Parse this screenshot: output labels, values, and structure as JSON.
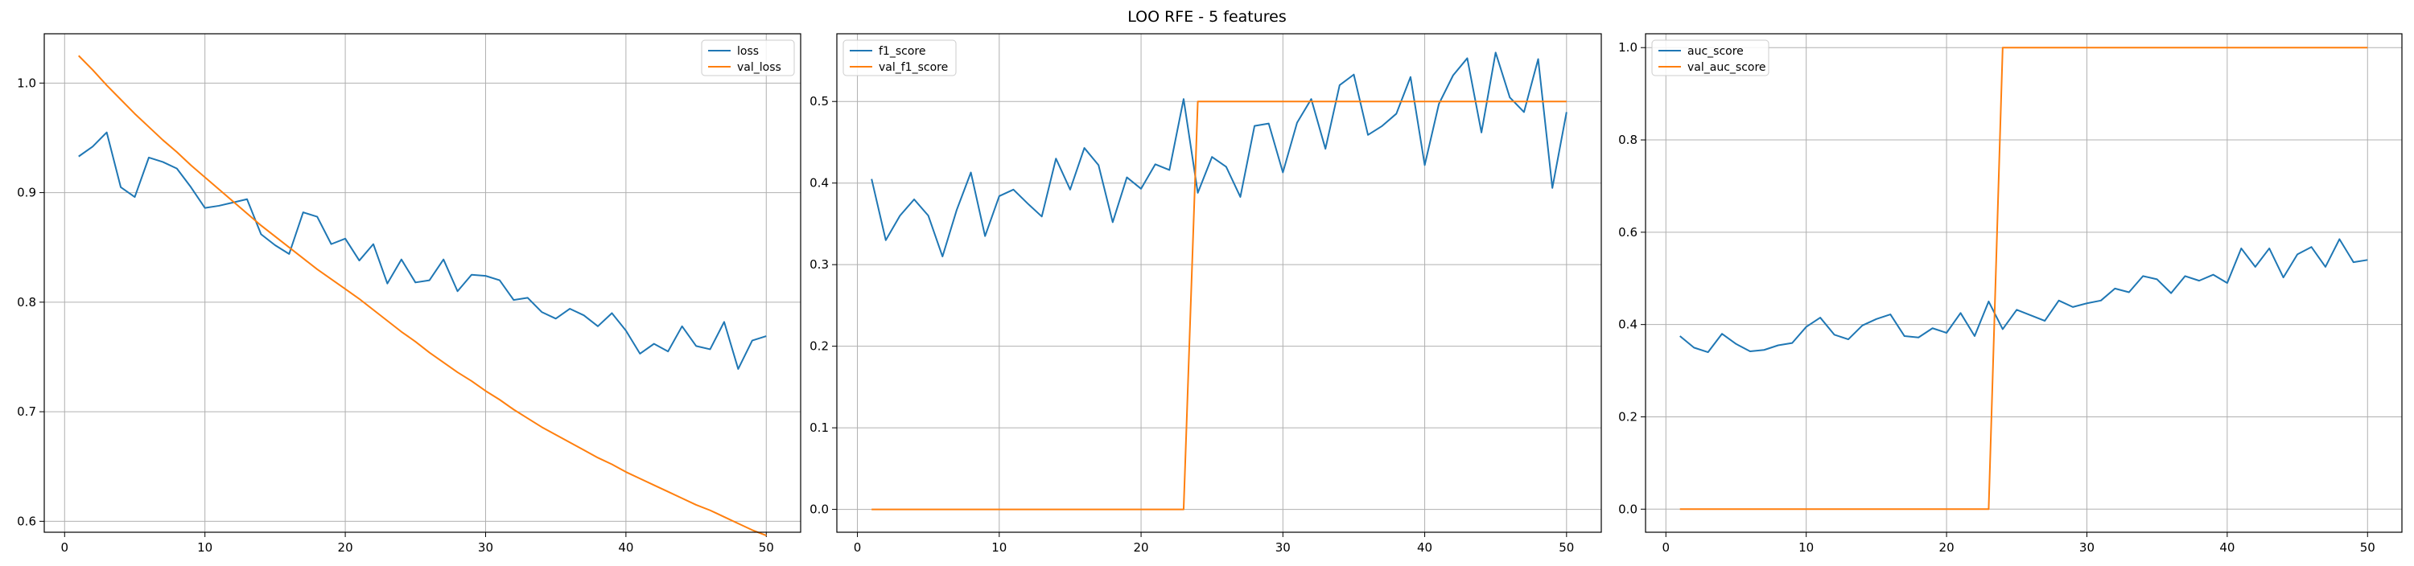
{
  "figure": {
    "suptitle": "LOO RFE - 5 features"
  },
  "colors": {
    "series_train": "#1f77b4",
    "series_val": "#ff7f0e",
    "grid": "#b0b0b0",
    "axes": "#000000"
  },
  "chart_data": [
    {
      "type": "line",
      "title": "",
      "xlabel": "",
      "ylabel": "",
      "xlim": [
        -1.45,
        52.45
      ],
      "ylim": [
        0.59,
        1.045
      ],
      "xticks": [
        0,
        10,
        20,
        30,
        40,
        50
      ],
      "xtick_labels": [
        "0",
        "10",
        "20",
        "30",
        "40",
        "50"
      ],
      "yticks": [
        0.6,
        0.7,
        0.8,
        0.9,
        1.0
      ],
      "ytick_labels": [
        "0.6",
        "0.7",
        "0.8",
        "0.9",
        "1.0"
      ],
      "grid": true,
      "legend_position": "top-right",
      "x": [
        1,
        2,
        3,
        4,
        5,
        6,
        7,
        8,
        9,
        10,
        11,
        12,
        13,
        14,
        15,
        16,
        17,
        18,
        19,
        20,
        21,
        22,
        23,
        24,
        25,
        26,
        27,
        28,
        29,
        30,
        31,
        32,
        33,
        34,
        35,
        36,
        37,
        38,
        39,
        40,
        41,
        42,
        43,
        44,
        45,
        46,
        47,
        48,
        49,
        50
      ],
      "series": [
        {
          "name": "loss",
          "color": "#1f77b4",
          "values": [
            0.933,
            0.942,
            0.955,
            0.905,
            0.896,
            0.932,
            0.928,
            0.922,
            0.905,
            0.886,
            0.888,
            0.891,
            0.894,
            0.862,
            0.852,
            0.844,
            0.882,
            0.878,
            0.853,
            0.858,
            0.838,
            0.853,
            0.817,
            0.839,
            0.818,
            0.82,
            0.839,
            0.81,
            0.825,
            0.824,
            0.82,
            0.802,
            0.804,
            0.791,
            0.785,
            0.794,
            0.788,
            0.778,
            0.79,
            0.774,
            0.753,
            0.762,
            0.755,
            0.778,
            0.76,
            0.757,
            0.782,
            0.739,
            0.765,
            0.769
          ]
        },
        {
          "name": "val_loss",
          "color": "#ff7f0e",
          "values": [
            1.025,
            1.012,
            0.998,
            0.985,
            0.972,
            0.96,
            0.948,
            0.937,
            0.925,
            0.914,
            0.903,
            0.892,
            0.881,
            0.87,
            0.86,
            0.85,
            0.84,
            0.83,
            0.821,
            0.812,
            0.803,
            0.793,
            0.783,
            0.773,
            0.764,
            0.754,
            0.745,
            0.736,
            0.728,
            0.719,
            0.711,
            0.702,
            0.694,
            0.686,
            0.679,
            0.672,
            0.665,
            0.658,
            0.652,
            0.645,
            0.639,
            0.633,
            0.627,
            0.621,
            0.615,
            0.61,
            0.604,
            0.598,
            0.592,
            0.587
          ]
        }
      ]
    },
    {
      "type": "line",
      "title": "",
      "xlabel": "",
      "ylabel": "",
      "xlim": [
        -1.45,
        52.45
      ],
      "ylim": [
        -0.028,
        0.583
      ],
      "xticks": [
        0,
        10,
        20,
        30,
        40,
        50
      ],
      "xtick_labels": [
        "0",
        "10",
        "20",
        "30",
        "40",
        "50"
      ],
      "yticks": [
        0.0,
        0.1,
        0.2,
        0.3,
        0.4,
        0.5
      ],
      "ytick_labels": [
        "0.0",
        "0.1",
        "0.2",
        "0.3",
        "0.4",
        "0.5"
      ],
      "grid": true,
      "legend_position": "top-left",
      "x": [
        1,
        2,
        3,
        4,
        5,
        6,
        7,
        8,
        9,
        10,
        11,
        12,
        13,
        14,
        15,
        16,
        17,
        18,
        19,
        20,
        21,
        22,
        23,
        24,
        25,
        26,
        27,
        28,
        29,
        30,
        31,
        32,
        33,
        34,
        35,
        36,
        37,
        38,
        39,
        40,
        41,
        42,
        43,
        44,
        45,
        46,
        47,
        48,
        49,
        50
      ],
      "series": [
        {
          "name": "f1_score",
          "color": "#1f77b4",
          "values": [
            0.405,
            0.33,
            0.36,
            0.38,
            0.36,
            0.31,
            0.367,
            0.413,
            0.335,
            0.384,
            0.392,
            0.375,
            0.359,
            0.43,
            0.392,
            0.443,
            0.422,
            0.352,
            0.407,
            0.393,
            0.423,
            0.416,
            0.503,
            0.388,
            0.432,
            0.42,
            0.383,
            0.47,
            0.473,
            0.413,
            0.474,
            0.503,
            0.442,
            0.52,
            0.533,
            0.459,
            0.47,
            0.485,
            0.53,
            0.422,
            0.497,
            0.532,
            0.553,
            0.462,
            0.56,
            0.505,
            0.487,
            0.552,
            0.394,
            0.487
          ]
        },
        {
          "name": "val_f1_score",
          "color": "#ff7f0e",
          "values": [
            0.0,
            0.0,
            0.0,
            0.0,
            0.0,
            0.0,
            0.0,
            0.0,
            0.0,
            0.0,
            0.0,
            0.0,
            0.0,
            0.0,
            0.0,
            0.0,
            0.0,
            0.0,
            0.0,
            0.0,
            0.0,
            0.0,
            0.0,
            0.5,
            0.5,
            0.5,
            0.5,
            0.5,
            0.5,
            0.5,
            0.5,
            0.5,
            0.5,
            0.5,
            0.5,
            0.5,
            0.5,
            0.5,
            0.5,
            0.5,
            0.5,
            0.5,
            0.5,
            0.5,
            0.5,
            0.5,
            0.5,
            0.5,
            0.5,
            0.5
          ]
        }
      ]
    },
    {
      "type": "line",
      "title": "",
      "xlabel": "",
      "ylabel": "",
      "xlim": [
        -1.45,
        52.45
      ],
      "ylim": [
        -0.05,
        1.03
      ],
      "xticks": [
        0,
        10,
        20,
        30,
        40,
        50
      ],
      "xtick_labels": [
        "0",
        "10",
        "20",
        "30",
        "40",
        "50"
      ],
      "yticks": [
        0.0,
        0.2,
        0.4,
        0.6,
        0.8,
        1.0
      ],
      "ytick_labels": [
        "0.0",
        "0.2",
        "0.4",
        "0.6",
        "0.8",
        "1.0"
      ],
      "grid": true,
      "legend_position": "top-left",
      "x": [
        1,
        2,
        3,
        4,
        5,
        6,
        7,
        8,
        9,
        10,
        11,
        12,
        13,
        14,
        15,
        16,
        17,
        18,
        19,
        20,
        21,
        22,
        23,
        24,
        25,
        26,
        27,
        28,
        29,
        30,
        31,
        32,
        33,
        34,
        35,
        36,
        37,
        38,
        39,
        40,
        41,
        42,
        43,
        44,
        45,
        46,
        47,
        48,
        49,
        50
      ],
      "series": [
        {
          "name": "auc_score",
          "color": "#1f77b4",
          "values": [
            0.375,
            0.35,
            0.34,
            0.38,
            0.358,
            0.342,
            0.345,
            0.355,
            0.36,
            0.395,
            0.415,
            0.378,
            0.368,
            0.398,
            0.412,
            0.422,
            0.375,
            0.372,
            0.392,
            0.382,
            0.425,
            0.375,
            0.45,
            0.39,
            0.432,
            0.42,
            0.408,
            0.452,
            0.438,
            0.446,
            0.452,
            0.478,
            0.47,
            0.505,
            0.498,
            0.468,
            0.505,
            0.495,
            0.508,
            0.49,
            0.565,
            0.525,
            0.565,
            0.502,
            0.552,
            0.568,
            0.525,
            0.585,
            0.535,
            0.54
          ]
        },
        {
          "name": "val_auc_score",
          "color": "#ff7f0e",
          "values": [
            0.0,
            0.0,
            0.0,
            0.0,
            0.0,
            0.0,
            0.0,
            0.0,
            0.0,
            0.0,
            0.0,
            0.0,
            0.0,
            0.0,
            0.0,
            0.0,
            0.0,
            0.0,
            0.0,
            0.0,
            0.0,
            0.0,
            0.0,
            1.0,
            1.0,
            1.0,
            1.0,
            1.0,
            1.0,
            1.0,
            1.0,
            1.0,
            1.0,
            1.0,
            1.0,
            1.0,
            1.0,
            1.0,
            1.0,
            1.0,
            1.0,
            1.0,
            1.0,
            1.0,
            1.0,
            1.0,
            1.0,
            1.0,
            1.0,
            1.0
          ]
        }
      ]
    }
  ]
}
